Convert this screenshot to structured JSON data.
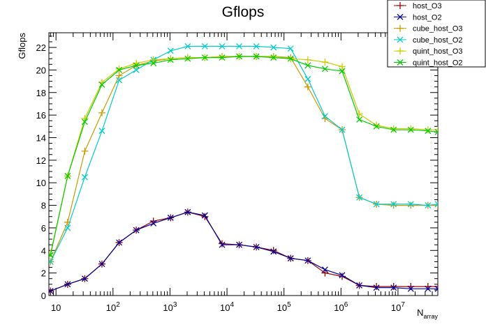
{
  "chart_data": {
    "type": "line",
    "title": "Gflops",
    "ylabel": "Gflops",
    "xlabel": "N",
    "xlabel_subscript": "array",
    "xscale": "log",
    "xlim": [
      7.5,
      50000000
    ],
    "ylim": [
      0,
      23.3
    ],
    "grid": false,
    "legend_position": "top-right",
    "y_ticks": [
      0,
      2,
      4,
      6,
      8,
      10,
      12,
      14,
      16,
      18,
      20,
      22
    ],
    "x_tick_labels": [
      {
        "base": "10",
        "exp": ""
      },
      {
        "base": "10",
        "exp": "2"
      },
      {
        "base": "10",
        "exp": "3"
      },
      {
        "base": "10",
        "exp": "4"
      },
      {
        "base": "10",
        "exp": "5"
      },
      {
        "base": "10",
        "exp": "6"
      },
      {
        "base": "10",
        "exp": "7"
      }
    ],
    "x": [
      8,
      16,
      32,
      64,
      128,
      256,
      512,
      1024,
      2048,
      4096,
      8192,
      16384,
      32768,
      65536,
      131072,
      262144,
      524288,
      1048576,
      2097152,
      4194304,
      8388608,
      16777216,
      33554432,
      50000000
    ],
    "series": [
      {
        "name": "host_O3",
        "color": "#990000",
        "marker": "plus",
        "values": [
          0.4,
          1.0,
          1.5,
          2.8,
          4.7,
          5.8,
          6.6,
          6.9,
          7.4,
          7.0,
          4.6,
          4.5,
          4.3,
          4.0,
          3.3,
          3.1,
          2.0,
          1.7,
          0.9,
          0.8,
          0.8,
          0.8,
          0.8,
          0.8
        ]
      },
      {
        "name": "host_O2",
        "color": "#000099",
        "marker": "cross",
        "values": [
          0.4,
          1.0,
          1.5,
          2.8,
          4.7,
          5.8,
          6.4,
          6.9,
          7.4,
          7.1,
          4.5,
          4.5,
          4.3,
          3.9,
          3.3,
          3.1,
          2.3,
          1.8,
          0.9,
          0.7,
          0.7,
          0.6,
          0.6,
          0.6
        ]
      },
      {
        "name": "cube_host_O3",
        "color": "#cc9900",
        "marker": "plus",
        "values": [
          3.0,
          6.5,
          12.8,
          16.2,
          19.5,
          20.4,
          20.8,
          21.0,
          21.1,
          21.1,
          21.2,
          21.2,
          21.2,
          21.2,
          21.1,
          18.5,
          15.7,
          14.7,
          8.7,
          8.1,
          8.0,
          8.0,
          8.0,
          8.0
        ]
      },
      {
        "name": "cube_host_O2",
        "color": "#00cccc",
        "marker": "cross",
        "values": [
          3.0,
          6.0,
          10.5,
          14.6,
          19.1,
          20.0,
          20.9,
          21.7,
          22.1,
          22.1,
          22.1,
          22.1,
          22.1,
          22.0,
          21.9,
          19.2,
          15.9,
          14.7,
          8.7,
          8.1,
          8.1,
          8.1,
          8.0,
          8.1
        ]
      },
      {
        "name": "quint_host_O3",
        "color": "#cccc00",
        "marker": "plus",
        "values": [
          3.7,
          10.6,
          15.7,
          18.9,
          20.1,
          20.6,
          20.9,
          21.0,
          21.1,
          21.1,
          21.2,
          21.2,
          21.2,
          21.2,
          21.0,
          20.9,
          20.7,
          20.3,
          16.1,
          15.1,
          14.8,
          14.8,
          14.7,
          14.7
        ]
      },
      {
        "name": "quint_host_O2",
        "color": "#00cc00",
        "marker": "cross",
        "values": [
          3.6,
          10.6,
          15.4,
          18.7,
          20.0,
          20.4,
          20.6,
          20.9,
          21.0,
          21.1,
          21.1,
          21.2,
          21.2,
          21.1,
          21.0,
          20.4,
          20.1,
          19.9,
          15.6,
          15.0,
          14.7,
          14.7,
          14.6,
          14.5
        ]
      }
    ]
  }
}
